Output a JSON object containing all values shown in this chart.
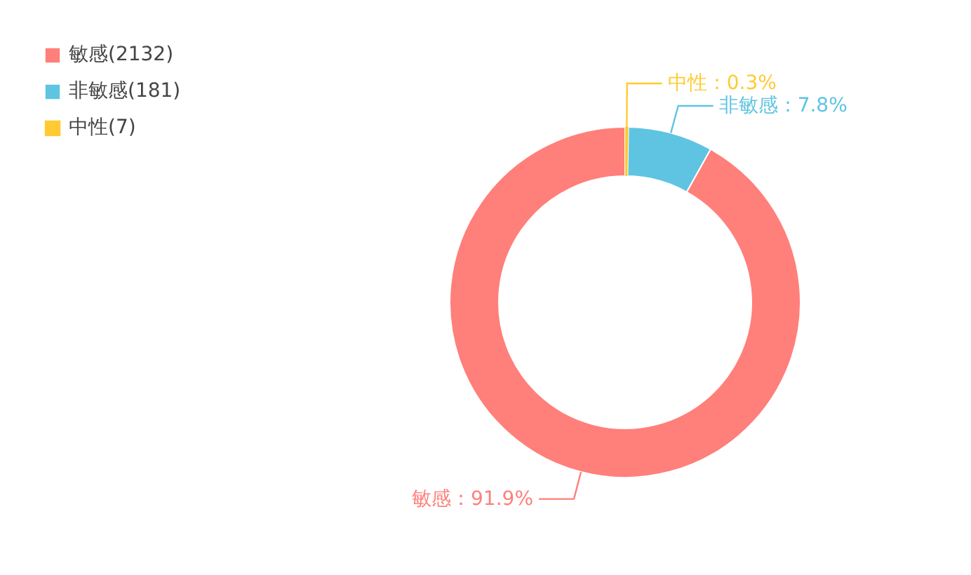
{
  "chart_data": {
    "type": "donut",
    "categories": [
      "敏感(2132)",
      "非敏感(181)",
      "中性(7)"
    ],
    "values": [
      91.9,
      7.8,
      0.3
    ],
    "colors": [
      "#ff7f7a",
      "#5ec4e2",
      "#ffca33"
    ],
    "value_labels": [
      "敏感：91.9%",
      "非敏感：7.8%",
      "中性：0.3%"
    ],
    "legend": "top left"
  }
}
